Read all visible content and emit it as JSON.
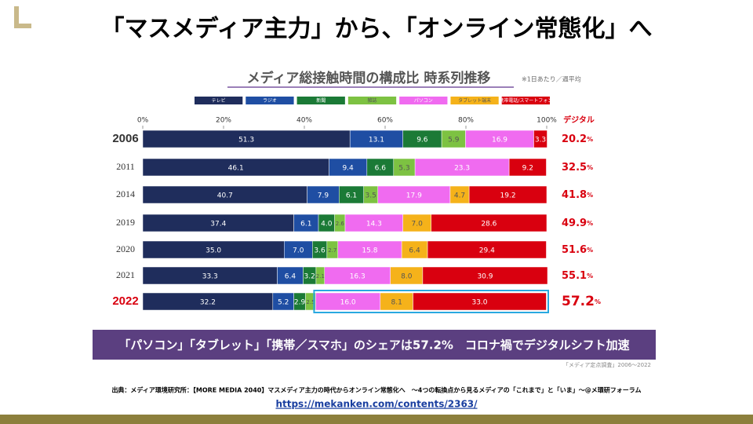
{
  "title": "「マスメディア主力」から、「オンライン常態化」へ",
  "chart_data": {
    "type": "bar",
    "orientation": "horizontal",
    "stacked": true,
    "title": "メディア総接触時間の構成比 時系列推移",
    "note": "※1日あたり／週平均",
    "categories": [
      "2006",
      "2011",
      "2014",
      "2019",
      "2020",
      "2021",
      "2022"
    ],
    "xlim": [
      0,
      100
    ],
    "xticks": [
      {
        "value": 0,
        "label": "0%"
      },
      {
        "value": 20,
        "label": "20%"
      },
      {
        "value": 40,
        "label": "40%"
      },
      {
        "value": 60,
        "label": "60%"
      },
      {
        "value": 80,
        "label": "80%"
      },
      {
        "value": 100,
        "label": "100%"
      }
    ],
    "series": [
      {
        "name": "テレビ",
        "color": "#1f2d5c",
        "label_color": "#ffffff",
        "values": [
          51.3,
          46.1,
          40.7,
          37.4,
          35.0,
          33.3,
          32.2
        ],
        "value_labels": [
          "51.3",
          "46.1",
          "40.7",
          "37.4",
          "35.0",
          "33.3",
          "32.2"
        ]
      },
      {
        "name": "ラジオ",
        "color": "#1f4ea3",
        "label_color": "#ffffff",
        "values": [
          13.1,
          9.4,
          7.9,
          6.1,
          7.0,
          6.4,
          5.2
        ],
        "value_labels": [
          "13.1",
          "9.4",
          "7.9",
          "6.1",
          "7.0",
          "6.4",
          "5.2"
        ]
      },
      {
        "name": "新聞",
        "color": "#1b7a36",
        "label_color": "#ffffff",
        "values": [
          9.6,
          6.6,
          6.1,
          4.0,
          3.6,
          3.2,
          2.9
        ],
        "value_labels": [
          "9.6",
          "6.6",
          "6.1",
          "4.0",
          "3.6",
          "3.2",
          "2.9"
        ]
      },
      {
        "name": "雑誌",
        "color": "#7dc242",
        "label_color": "#555555",
        "values": [
          5.9,
          5.3,
          3.5,
          2.6,
          2.7,
          2.1,
          2.5
        ],
        "value_labels": [
          "5.9",
          "5.3",
          "3.5",
          "2.6",
          "2.7",
          "2.1",
          "2.5"
        ]
      },
      {
        "name": "パソコン",
        "color": "#f06bf0",
        "label_color": "#ffffff",
        "values": [
          16.9,
          23.3,
          17.9,
          14.3,
          15.8,
          16.3,
          16.0
        ],
        "value_labels": [
          "16.9",
          "23.3",
          "17.9",
          "14.3",
          "15.8",
          "16.3",
          "16.0"
        ]
      },
      {
        "name": "タブレット端末",
        "color": "#f5b21a",
        "label_color": "#555555",
        "values": [
          null,
          null,
          4.7,
          7.0,
          6.4,
          8.0,
          8.1
        ],
        "value_labels": [
          null,
          null,
          "4.7",
          "7.0",
          "6.4",
          "8.0",
          "8.1"
        ]
      },
      {
        "name": "携帯電話/スマートフォン",
        "color": "#d9000f",
        "label_color": "#ffffff",
        "values": [
          3.3,
          9.2,
          19.2,
          28.6,
          29.4,
          30.9,
          33.0
        ],
        "value_labels": [
          "3.3",
          "9.2",
          "19.2",
          "28.6",
          "29.4",
          "30.9",
          "33.0"
        ]
      }
    ],
    "digital": {
      "label": "デジタル",
      "unit": "%",
      "values": [
        20.2,
        32.5,
        41.8,
        49.9,
        51.6,
        55.1,
        57.2
      ]
    },
    "banner": "「パソコン」「タブレット」「携帯／スマホ」のシェアは57.2%　コロナ禍でデジタルシフト加速",
    "source": "「メディア定点調査」2006～2022"
  },
  "citation": "出典：メディア環境研究所：【MORE MEDIA 2040】マスメディア主力の時代からオンライン常態化へ　～4つの転換点から見るメディアの「これまで」と「いま」～@メ環研フォーラム",
  "url": "https://mekanken.com/contents/2363/"
}
